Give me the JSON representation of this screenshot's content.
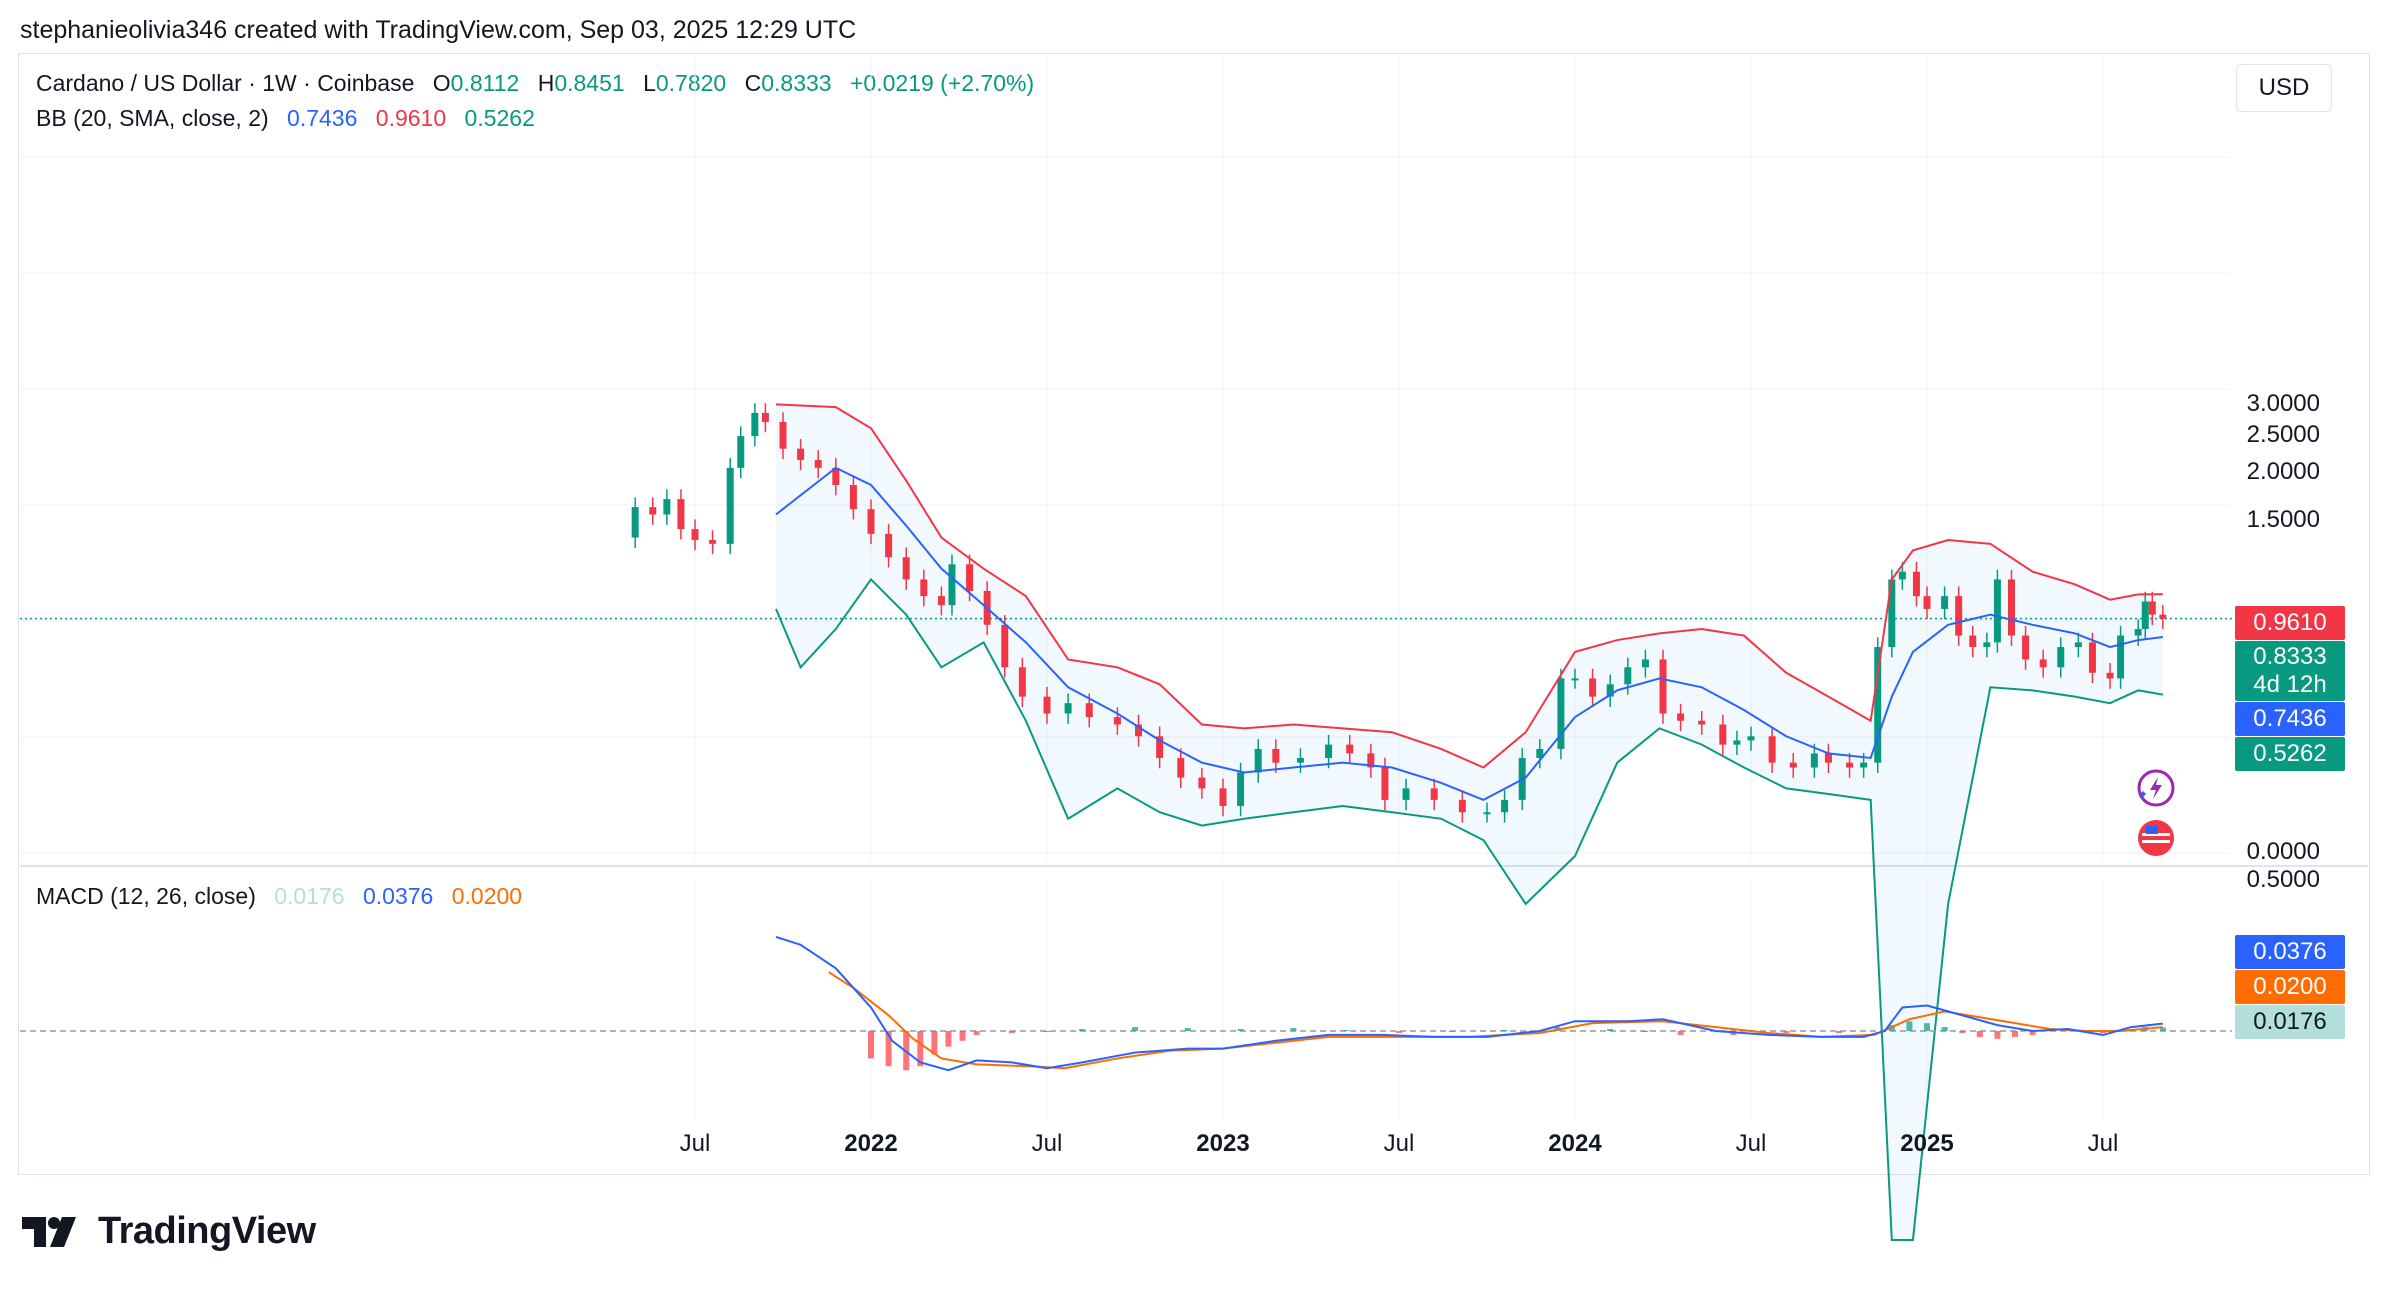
{
  "header": {
    "user": "stephanieolivia346 created with TradingView.com, Sep 03, 2025 12:29 UTC"
  },
  "currency_button": "USD",
  "legend": {
    "symbol": "Cardano / US Dollar · 1W · Coinbase",
    "o_label": "O",
    "o": "0.8112",
    "h_label": "H",
    "h": "0.8451",
    "l_label": "L",
    "l": "0.7820",
    "c_label": "C",
    "c": "0.8333",
    "change": "+0.0219 (+2.70%)",
    "bb_label": "BB (20, SMA, close, 2)",
    "bb_basis": "0.7436",
    "bb_upper": "0.9610",
    "bb_lower": "0.5262",
    "macd_label": "MACD (12, 26, close)",
    "macd_hist": "0.0176",
    "macd_line": "0.0376",
    "macd_signal": "0.0200"
  },
  "price_tags": {
    "bb_upper": "0.9610",
    "last": "0.8333",
    "countdown": "4d 12h",
    "bb_basis": "0.7436",
    "bb_lower": "0.5262",
    "macd_line": "0.0376",
    "macd_signal": "0.0200",
    "macd_hist": "0.0176"
  },
  "brand": "TradingView",
  "colors": {
    "up": "#089981",
    "down": "#f23645",
    "bb_upper": "#f23645",
    "bb_basis": "#2962ff",
    "bb_lower": "#089981",
    "bb_fill": "#2196f3",
    "macd": "#2962ff",
    "signal": "#ff6d00",
    "hist_up": "#26a69a",
    "hist_down": "#ff5252"
  },
  "chart_data": [
    {
      "type": "candlestick",
      "title": "Cardano / US Dollar · 1W · Coinbase",
      "yscale": "log",
      "y_ticks": [
        "3.0000",
        "2.5000",
        "2.0000",
        "1.5000",
        "0.0000"
      ],
      "y_tick_values": [
        3.0,
        2.5,
        2.0,
        1.5,
        0.0
      ],
      "x_tick_labels": [
        {
          "label": "Jul",
          "t": 2021.5,
          "bold": false
        },
        {
          "label": "2022",
          "t": 2022.0,
          "bold": true
        },
        {
          "label": "Jul",
          "t": 2022.5,
          "bold": false
        },
        {
          "label": "2023",
          "t": 2023.0,
          "bold": true
        },
        {
          "label": "Jul",
          "t": 2023.5,
          "bold": false
        },
        {
          "label": "2024",
          "t": 2024.0,
          "bold": true
        },
        {
          "label": "Jul",
          "t": 2024.5,
          "bold": false
        },
        {
          "label": "2025",
          "t": 2025.0,
          "bold": true
        },
        {
          "label": "Jul",
          "t": 2025.5,
          "bold": false
        }
      ],
      "close_series": [
        [
          2021.28,
          1.35
        ],
        [
          2021.33,
          1.62
        ],
        [
          2021.38,
          1.55
        ],
        [
          2021.42,
          1.7
        ],
        [
          2021.46,
          1.42
        ],
        [
          2021.5,
          1.33
        ],
        [
          2021.55,
          1.3
        ],
        [
          2021.6,
          2.05
        ],
        [
          2021.63,
          2.48
        ],
        [
          2021.67,
          2.85
        ],
        [
          2021.7,
          2.7
        ],
        [
          2021.75,
          2.3
        ],
        [
          2021.8,
          2.15
        ],
        [
          2021.85,
          2.05
        ],
        [
          2021.9,
          1.85
        ],
        [
          2021.95,
          1.6
        ],
        [
          2022.0,
          1.38
        ],
        [
          2022.05,
          1.2
        ],
        [
          2022.1,
          1.05
        ],
        [
          2022.15,
          0.95
        ],
        [
          2022.2,
          0.9
        ],
        [
          2022.23,
          1.15
        ],
        [
          2022.28,
          0.98
        ],
        [
          2022.33,
          0.8
        ],
        [
          2022.38,
          0.62
        ],
        [
          2022.43,
          0.52
        ],
        [
          2022.5,
          0.47
        ],
        [
          2022.56,
          0.5
        ],
        [
          2022.62,
          0.46
        ],
        [
          2022.7,
          0.44
        ],
        [
          2022.76,
          0.41
        ],
        [
          2022.82,
          0.36
        ],
        [
          2022.88,
          0.32
        ],
        [
          2022.94,
          0.3
        ],
        [
          2023.0,
          0.27
        ],
        [
          2023.05,
          0.33
        ],
        [
          2023.1,
          0.38
        ],
        [
          2023.15,
          0.35
        ],
        [
          2023.22,
          0.36
        ],
        [
          2023.3,
          0.39
        ],
        [
          2023.36,
          0.37
        ],
        [
          2023.42,
          0.34
        ],
        [
          2023.46,
          0.28
        ],
        [
          2023.52,
          0.3
        ],
        [
          2023.6,
          0.28
        ],
        [
          2023.68,
          0.26
        ],
        [
          2023.75,
          0.26
        ],
        [
          2023.8,
          0.28
        ],
        [
          2023.85,
          0.36
        ],
        [
          2023.9,
          0.38
        ],
        [
          2023.96,
          0.58
        ],
        [
          2024.0,
          0.58
        ],
        [
          2024.05,
          0.52
        ],
        [
          2024.1,
          0.56
        ],
        [
          2024.15,
          0.62
        ],
        [
          2024.2,
          0.65
        ],
        [
          2024.25,
          0.47
        ],
        [
          2024.3,
          0.45
        ],
        [
          2024.36,
          0.44
        ],
        [
          2024.42,
          0.39
        ],
        [
          2024.46,
          0.4
        ],
        [
          2024.5,
          0.41
        ],
        [
          2024.56,
          0.35
        ],
        [
          2024.62,
          0.34
        ],
        [
          2024.68,
          0.37
        ],
        [
          2024.72,
          0.35
        ],
        [
          2024.78,
          0.34
        ],
        [
          2024.82,
          0.35
        ],
        [
          2024.86,
          0.7
        ],
        [
          2024.9,
          1.05
        ],
        [
          2024.93,
          1.1
        ],
        [
          2024.97,
          0.95
        ],
        [
          2025.0,
          0.88
        ],
        [
          2025.05,
          0.95
        ],
        [
          2025.09,
          0.75
        ],
        [
          2025.13,
          0.7
        ],
        [
          2025.17,
          0.72
        ],
        [
          2025.2,
          1.05
        ],
        [
          2025.24,
          0.75
        ],
        [
          2025.28,
          0.65
        ],
        [
          2025.33,
          0.62
        ],
        [
          2025.38,
          0.7
        ],
        [
          2025.43,
          0.72
        ],
        [
          2025.47,
          0.6
        ],
        [
          2025.52,
          0.58
        ],
        [
          2025.55,
          0.75
        ],
        [
          2025.6,
          0.78
        ],
        [
          2025.62,
          0.92
        ],
        [
          2025.64,
          0.85
        ],
        [
          2025.67,
          0.83
        ]
      ],
      "bb_upper_series": [
        [
          2021.73,
          3.0
        ],
        [
          2021.9,
          2.95
        ],
        [
          2022.0,
          2.6
        ],
        [
          2022.1,
          1.9
        ],
        [
          2022.2,
          1.35
        ],
        [
          2022.32,
          1.12
        ],
        [
          2022.44,
          0.95
        ],
        [
          2022.56,
          0.65
        ],
        [
          2022.7,
          0.62
        ],
        [
          2022.82,
          0.56
        ],
        [
          2022.94,
          0.44
        ],
        [
          2023.06,
          0.43
        ],
        [
          2023.2,
          0.44
        ],
        [
          2023.34,
          0.43
        ],
        [
          2023.48,
          0.42
        ],
        [
          2023.62,
          0.38
        ],
        [
          2023.74,
          0.34
        ],
        [
          2023.86,
          0.42
        ],
        [
          2024.0,
          0.68
        ],
        [
          2024.12,
          0.73
        ],
        [
          2024.24,
          0.76
        ],
        [
          2024.36,
          0.78
        ],
        [
          2024.48,
          0.75
        ],
        [
          2024.6,
          0.6
        ],
        [
          2024.72,
          0.52
        ],
        [
          2024.84,
          0.45
        ],
        [
          2024.9,
          1.05
        ],
        [
          2024.96,
          1.25
        ],
        [
          2025.06,
          1.33
        ],
        [
          2025.18,
          1.3
        ],
        [
          2025.3,
          1.1
        ],
        [
          2025.42,
          1.02
        ],
        [
          2025.52,
          0.93
        ],
        [
          2025.6,
          0.96
        ],
        [
          2025.67,
          0.961
        ]
      ],
      "bb_basis_series": [
        [
          2021.73,
          1.55
        ],
        [
          2021.9,
          2.05
        ],
        [
          2022.0,
          1.85
        ],
        [
          2022.1,
          1.45
        ],
        [
          2022.2,
          1.12
        ],
        [
          2022.32,
          0.9
        ],
        [
          2022.44,
          0.72
        ],
        [
          2022.56,
          0.55
        ],
        [
          2022.7,
          0.47
        ],
        [
          2022.82,
          0.4
        ],
        [
          2022.94,
          0.35
        ],
        [
          2023.06,
          0.33
        ],
        [
          2023.2,
          0.34
        ],
        [
          2023.34,
          0.35
        ],
        [
          2023.48,
          0.34
        ],
        [
          2023.62,
          0.31
        ],
        [
          2023.74,
          0.28
        ],
        [
          2023.86,
          0.32
        ],
        [
          2024.0,
          0.46
        ],
        [
          2024.12,
          0.54
        ],
        [
          2024.24,
          0.58
        ],
        [
          2024.36,
          0.55
        ],
        [
          2024.48,
          0.48
        ],
        [
          2024.6,
          0.41
        ],
        [
          2024.72,
          0.37
        ],
        [
          2024.84,
          0.36
        ],
        [
          2024.9,
          0.52
        ],
        [
          2024.96,
          0.68
        ],
        [
          2025.06,
          0.8
        ],
        [
          2025.18,
          0.85
        ],
        [
          2025.3,
          0.8
        ],
        [
          2025.42,
          0.76
        ],
        [
          2025.52,
          0.7
        ],
        [
          2025.6,
          0.73
        ],
        [
          2025.67,
          0.7436
        ]
      ],
      "bb_lower_series": [
        [
          2021.73,
          0.88
        ],
        [
          2021.8,
          0.62
        ],
        [
          2021.9,
          0.78
        ],
        [
          2022.0,
          1.05
        ],
        [
          2022.1,
          0.85
        ],
        [
          2022.2,
          0.62
        ],
        [
          2022.32,
          0.72
        ],
        [
          2022.44,
          0.45
        ],
        [
          2022.56,
          0.25
        ],
        [
          2022.7,
          0.3
        ],
        [
          2022.82,
          0.26
        ],
        [
          2022.94,
          0.24
        ],
        [
          2023.06,
          0.25
        ],
        [
          2023.2,
          0.26
        ],
        [
          2023.34,
          0.27
        ],
        [
          2023.48,
          0.26
        ],
        [
          2023.62,
          0.25
        ],
        [
          2023.74,
          0.22
        ],
        [
          2023.86,
          0.15
        ],
        [
          2024.0,
          0.2
        ],
        [
          2024.12,
          0.35
        ],
        [
          2024.24,
          0.43
        ],
        [
          2024.36,
          0.39
        ],
        [
          2024.48,
          0.34
        ],
        [
          2024.6,
          0.3
        ],
        [
          2024.72,
          0.29
        ],
        [
          2024.84,
          0.28
        ],
        [
          2024.9,
          0.02
        ],
        [
          2024.96,
          0.02
        ],
        [
          2025.06,
          0.15
        ],
        [
          2025.18,
          0.55
        ],
        [
          2025.3,
          0.54
        ],
        [
          2025.42,
          0.52
        ],
        [
          2025.52,
          0.5
        ],
        [
          2025.6,
          0.54
        ],
        [
          2025.67,
          0.5262
        ]
      ]
    },
    {
      "type": "macd",
      "title": "MACD (12, 26, close)",
      "y_ticks": [
        "0.5000"
      ],
      "y_tick_values": [
        0.5
      ],
      "macd_series": [
        [
          2021.73,
          0.48
        ],
        [
          2021.8,
          0.44
        ],
        [
          2021.9,
          0.32
        ],
        [
          2022.0,
          0.12
        ],
        [
          2022.06,
          -0.05
        ],
        [
          2022.14,
          -0.16
        ],
        [
          2022.22,
          -0.2
        ],
        [
          2022.3,
          -0.15
        ],
        [
          2022.4,
          -0.16
        ],
        [
          2022.5,
          -0.19
        ],
        [
          2022.6,
          -0.16
        ],
        [
          2022.75,
          -0.11
        ],
        [
          2022.9,
          -0.09
        ],
        [
          2023.0,
          -0.09
        ],
        [
          2023.15,
          -0.05
        ],
        [
          2023.3,
          -0.02
        ],
        [
          2023.45,
          -0.02
        ],
        [
          2023.6,
          -0.03
        ],
        [
          2023.75,
          -0.03
        ],
        [
          2023.9,
          0.0
        ],
        [
          2024.0,
          0.05
        ],
        [
          2024.15,
          0.05
        ],
        [
          2024.25,
          0.06
        ],
        [
          2024.4,
          0.0
        ],
        [
          2024.55,
          -0.02
        ],
        [
          2024.7,
          -0.03
        ],
        [
          2024.82,
          -0.03
        ],
        [
          2024.88,
          0.0
        ],
        [
          2024.93,
          0.12
        ],
        [
          2025.0,
          0.13
        ],
        [
          2025.06,
          0.1
        ],
        [
          2025.12,
          0.07
        ],
        [
          2025.2,
          0.03
        ],
        [
          2025.3,
          0.0
        ],
        [
          2025.4,
          0.01
        ],
        [
          2025.5,
          -0.02
        ],
        [
          2025.58,
          0.02
        ],
        [
          2025.67,
          0.0376
        ]
      ],
      "signal_series": [
        [
          2021.88,
          0.3
        ],
        [
          2021.95,
          0.22
        ],
        [
          2022.05,
          0.08
        ],
        [
          2022.12,
          -0.04
        ],
        [
          2022.2,
          -0.14
        ],
        [
          2022.3,
          -0.17
        ],
        [
          2022.45,
          -0.18
        ],
        [
          2022.55,
          -0.19
        ],
        [
          2022.7,
          -0.14
        ],
        [
          2022.85,
          -0.1
        ],
        [
          2023.0,
          -0.09
        ],
        [
          2023.15,
          -0.06
        ],
        [
          2023.3,
          -0.03
        ],
        [
          2023.5,
          -0.03
        ],
        [
          2023.7,
          -0.03
        ],
        [
          2023.9,
          -0.01
        ],
        [
          2024.05,
          0.04
        ],
        [
          2024.25,
          0.05
        ],
        [
          2024.4,
          0.02
        ],
        [
          2024.55,
          -0.01
        ],
        [
          2024.7,
          -0.03
        ],
        [
          2024.85,
          -0.02
        ],
        [
          2024.95,
          0.06
        ],
        [
          2025.05,
          0.1
        ],
        [
          2025.15,
          0.07
        ],
        [
          2025.25,
          0.04
        ],
        [
          2025.35,
          0.01
        ],
        [
          2025.45,
          0.0
        ],
        [
          2025.55,
          0.0
        ],
        [
          2025.67,
          0.02
        ]
      ],
      "histogram_series": [
        [
          2022.0,
          -0.14
        ],
        [
          2022.05,
          -0.18
        ],
        [
          2022.1,
          -0.2
        ],
        [
          2022.14,
          -0.18
        ],
        [
          2022.18,
          -0.12
        ],
        [
          2022.22,
          -0.08
        ],
        [
          2022.26,
          -0.05
        ],
        [
          2022.3,
          -0.02
        ],
        [
          2022.4,
          -0.01
        ],
        [
          2022.5,
          0.0
        ],
        [
          2022.6,
          0.01
        ],
        [
          2022.75,
          0.02
        ],
        [
          2022.9,
          0.015
        ],
        [
          2023.05,
          0.01
        ],
        [
          2023.2,
          0.015
        ],
        [
          2023.35,
          0.005
        ],
        [
          2023.5,
          -0.01
        ],
        [
          2023.65,
          -0.005
        ],
        [
          2023.8,
          0.005
        ],
        [
          2023.95,
          0.02
        ],
        [
          2024.1,
          0.01
        ],
        [
          2024.2,
          0.0
        ],
        [
          2024.3,
          -0.02
        ],
        [
          2024.45,
          -0.02
        ],
        [
          2024.6,
          -0.01
        ],
        [
          2024.75,
          -0.01
        ],
        [
          2024.9,
          0.03
        ],
        [
          2024.95,
          0.05
        ],
        [
          2025.0,
          0.04
        ],
        [
          2025.05,
          0.02
        ],
        [
          2025.1,
          -0.01
        ],
        [
          2025.15,
          -0.03
        ],
        [
          2025.2,
          -0.04
        ],
        [
          2025.25,
          -0.03
        ],
        [
          2025.3,
          -0.02
        ],
        [
          2025.4,
          0.005
        ],
        [
          2025.5,
          -0.01
        ],
        [
          2025.58,
          0.01
        ],
        [
          2025.62,
          0.02
        ],
        [
          2025.67,
          0.0176
        ]
      ]
    }
  ]
}
